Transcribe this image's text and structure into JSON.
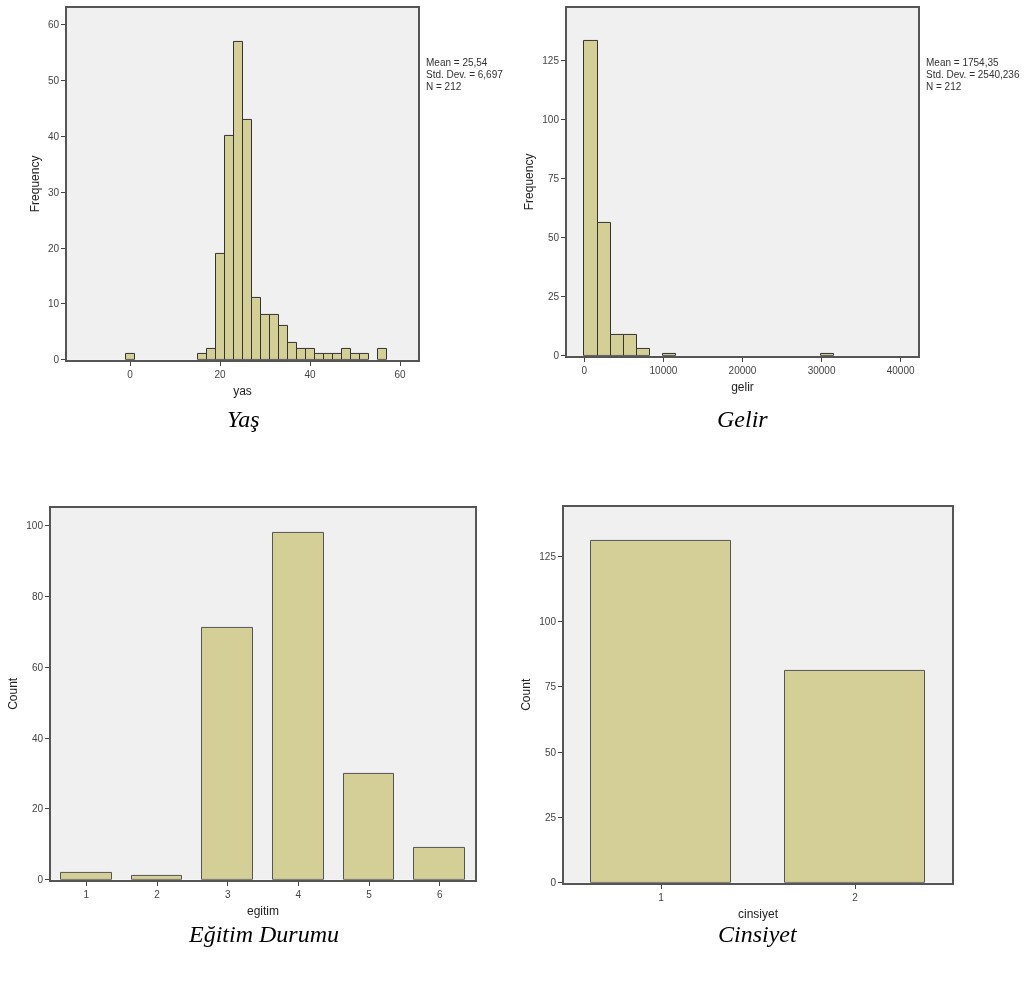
{
  "chart_data": [
    {
      "type": "histogram",
      "title": "Yaş",
      "xlabel": "yas",
      "ylabel": "Frequency",
      "color": "#d4cf97",
      "bins": [
        -1,
        1,
        3,
        5,
        7,
        9,
        11,
        13,
        15,
        17,
        19,
        21,
        23,
        25,
        27,
        29,
        31,
        33,
        35,
        37,
        39,
        41,
        43,
        45,
        47,
        49,
        51,
        53,
        55,
        57
      ],
      "values": [
        1,
        0,
        0,
        0,
        0,
        0,
        0,
        0,
        1,
        2,
        19,
        40,
        57,
        43,
        11,
        8,
        8,
        6,
        3,
        2,
        2,
        1,
        1,
        1,
        2,
        1,
        1,
        0,
        2
      ],
      "xlim": [
        -14,
        64
      ],
      "xticks": [
        0,
        20,
        40,
        60
      ],
      "ylim": [
        0,
        63
      ],
      "yticks": [
        0,
        10,
        20,
        30,
        40,
        50,
        60
      ],
      "grid": false,
      "annotations": [
        "Mean = 25,54",
        "Std. Dev. = 6,697",
        "N = 212"
      ]
    },
    {
      "type": "histogram",
      "title": "Gelir",
      "xlabel": "gelir",
      "ylabel": "Frequency",
      "color": "#d4cf97",
      "bins": [
        0,
        1660,
        3320,
        4980,
        6640,
        8300,
        9960,
        11620,
        13280,
        14940,
        16600,
        18260,
        19920,
        21580,
        23240,
        24900,
        26560,
        28220,
        29880,
        31540
      ],
      "values": [
        133,
        56,
        9,
        9,
        3,
        0,
        1,
        0,
        0,
        0,
        0,
        0,
        0,
        0,
        0,
        0,
        0,
        0,
        1
      ],
      "xlim": [
        -2200,
        42200
      ],
      "xticks": [
        0,
        10000,
        20000,
        30000,
        40000
      ],
      "ylim": [
        0,
        147
      ],
      "yticks": [
        0,
        25,
        50,
        75,
        100,
        125
      ],
      "grid": false,
      "annotations": [
        "Mean = 1754,35",
        "Std. Dev. = 2540,236",
        "N = 212"
      ]
    },
    {
      "type": "bar",
      "title": "Eğitim Durumu",
      "xlabel": "egitim",
      "ylabel": "Count",
      "color": "#d4cf97",
      "categories": [
        "1",
        "2",
        "3",
        "4",
        "5",
        "6"
      ],
      "values": [
        2,
        1,
        71,
        98,
        30,
        9
      ],
      "ylim": [
        0,
        105
      ],
      "yticks": [
        0,
        20,
        40,
        60,
        80,
        100
      ],
      "grid": false
    },
    {
      "type": "bar",
      "title": "Cinsiyet",
      "xlabel": "cinsiyet",
      "ylabel": "Count",
      "color": "#d4cf97",
      "categories": [
        "1",
        "2"
      ],
      "values": [
        131,
        81
      ],
      "ylim": [
        0,
        144
      ],
      "yticks": [
        0,
        25,
        50,
        75,
        100,
        125
      ],
      "grid": false
    }
  ]
}
